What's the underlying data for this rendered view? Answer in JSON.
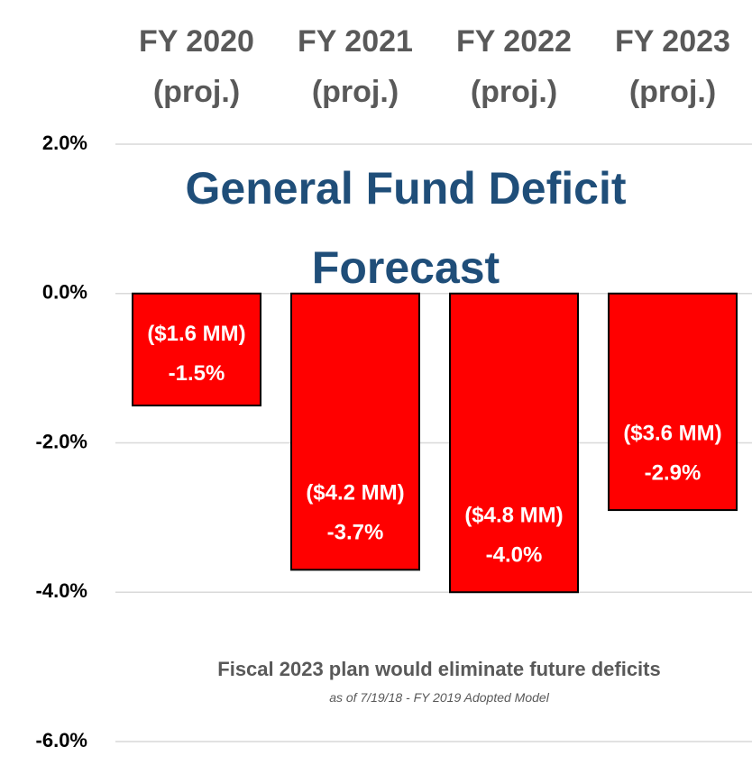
{
  "chart_data": {
    "type": "bar",
    "title": "General Fund Deficit Forecast",
    "subtitle": "Fiscal 2023 plan would eliminate future deficits",
    "note": "as of 7/19/18 - FY 2019 Adopted Model",
    "categories": [
      "FY 2020 (proj.)",
      "FY 2021 (proj.)",
      "FY 2022 (proj.)",
      "FY 2023 (proj.)"
    ],
    "values": [
      -1.5,
      -3.7,
      -4.0,
      -2.9
    ],
    "value_labels": [
      "-1.5%",
      "-3.7%",
      "-4.0%",
      "-2.9%"
    ],
    "amounts": [
      "($1.6 MM)",
      "($4.2 MM)",
      "($4.8 MM)",
      "($3.6 MM)"
    ],
    "color": "#ff0000",
    "ylim": [
      -6,
      2
    ],
    "yticks": [
      {
        "value": 2,
        "label": "2.0%"
      },
      {
        "value": 0,
        "label": "0.0%"
      },
      {
        "value": -2,
        "label": "-2.0%"
      },
      {
        "value": -4,
        "label": "-4.0%"
      },
      {
        "value": -6,
        "label": "-6.0%"
      }
    ],
    "grid": true
  }
}
